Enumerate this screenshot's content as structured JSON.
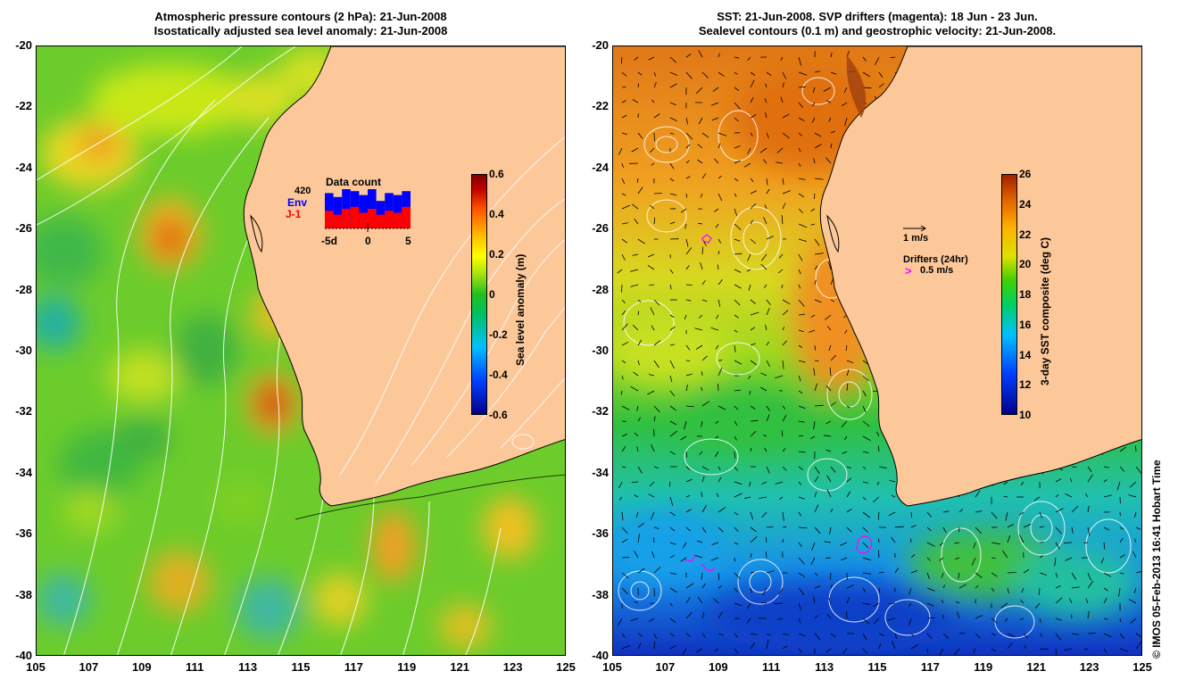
{
  "left_panel": {
    "title_line1": "Atmospheric pressure contours (2 hPa): 21-Jun-2008",
    "title_line2": "Isostatically adjusted sea level anomaly: 21-Jun-2008",
    "y_ticks": [
      "-20",
      "-22",
      "-24",
      "-26",
      "-28",
      "-30",
      "-32",
      "-34",
      "-36",
      "-38",
      "-40"
    ],
    "x_ticks": [
      "105",
      "107",
      "109",
      "111",
      "113",
      "115",
      "117",
      "119",
      "121",
      "123",
      "125"
    ],
    "colorbar": {
      "label": "Sea level anomaly (m)",
      "ticks": [
        "0.6",
        "0.4",
        "0.2",
        "0",
        "-0.2",
        "-0.4",
        "-0.6"
      ]
    },
    "data_count": {
      "title": "Data count",
      "count": "420",
      "env_label": "Env",
      "j1_label": "J-1",
      "env_color": "#0000ff",
      "j1_color": "#ff0000",
      "axis_labels": [
        "-5d",
        "0",
        "5"
      ],
      "env_values": [
        0.9,
        0.8,
        1.0,
        0.95,
        0.85,
        1.0,
        0.7,
        0.9,
        0.85,
        0.95
      ],
      "j1_values": [
        0.45,
        0.35,
        0.5,
        0.55,
        0.4,
        0.5,
        0.35,
        0.45,
        0.4,
        0.55
      ]
    }
  },
  "right_panel": {
    "title_line1": "SST: 21-Jun-2008. SVP drifters (magenta): 18 Jun - 23 Jun.",
    "title_line2": "Sealevel contours (0.1 m) and geostrophic velocity: 21-Jun-2008.",
    "y_ticks": [
      "-20",
      "-22",
      "-24",
      "-26",
      "-28",
      "-30",
      "-32",
      "-34",
      "-36",
      "-38",
      "-40"
    ],
    "x_ticks": [
      "105",
      "107",
      "109",
      "111",
      "113",
      "115",
      "117",
      "119",
      "121",
      "123",
      "125"
    ],
    "colorbar": {
      "label": "3-day SST composite (deg C)",
      "ticks": [
        "26",
        "24",
        "22",
        "20",
        "18",
        "16",
        "14",
        "12",
        "10"
      ]
    },
    "velocity_legend": "1 m/s",
    "drifters_title": "Drifters (24hr)",
    "drifters_speed": "0.5 m/s",
    "drifter_color": "#ff00ff"
  },
  "credit": "© IMOS 05-Feb-2013 16:41 Hobart Time",
  "colors": {
    "land": "#fcc89a",
    "coast": "#000000",
    "contour": "#ffffff"
  }
}
